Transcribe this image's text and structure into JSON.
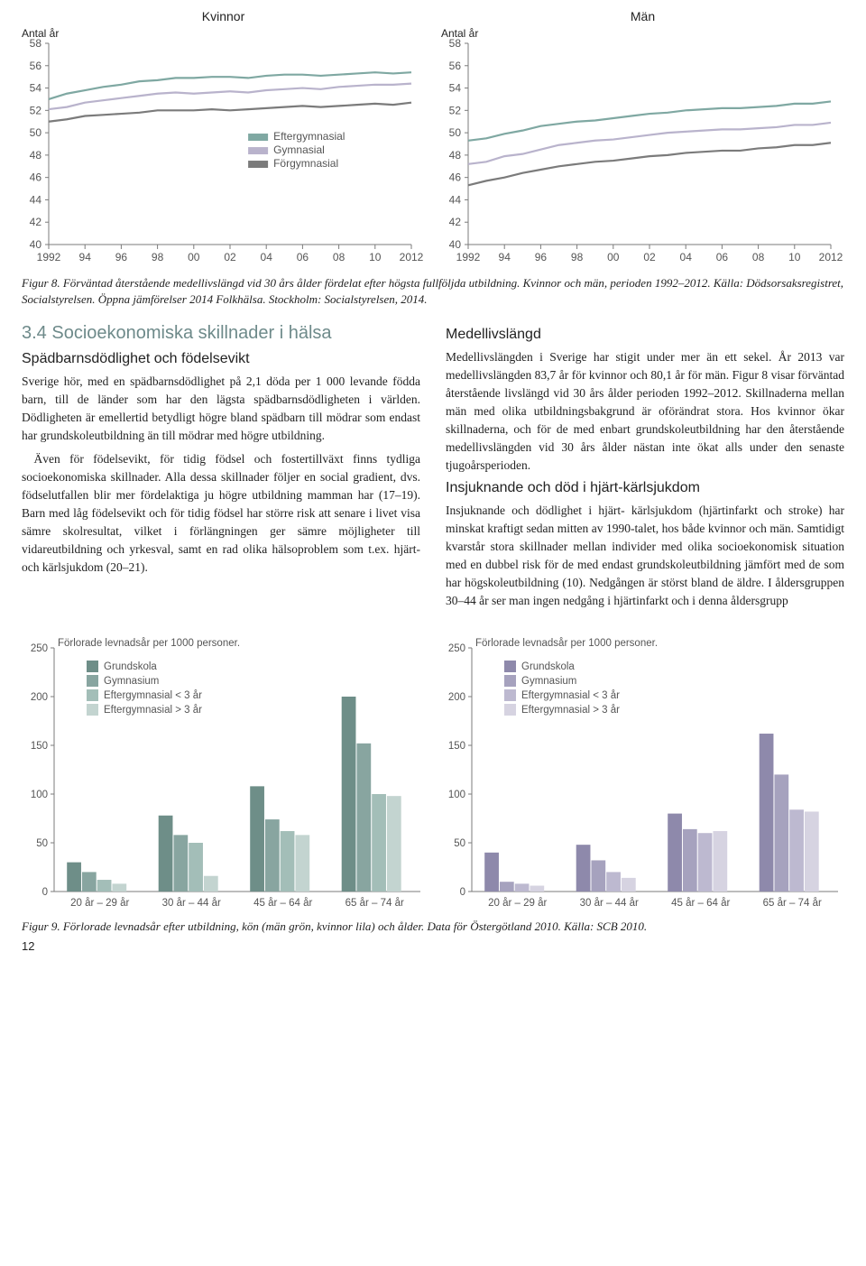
{
  "lineCharts": {
    "ylabel": "Antal år",
    "ylim": [
      40,
      58
    ],
    "ytick_step": 2,
    "xlim": [
      1992,
      2012
    ],
    "xticks": [
      "1992",
      "94",
      "96",
      "98",
      "00",
      "02",
      "04",
      "06",
      "08",
      "10",
      "2012"
    ],
    "legend": [
      "Eftergymnasial",
      "Gymnasial",
      "Förgymnasial"
    ],
    "colors": {
      "efter": "#7fa8a2",
      "gym": "#b9b3cc",
      "for": "#7b7b7b"
    },
    "grid_color": "#c5c2cf",
    "axis_color": "#7b7b7b",
    "left": {
      "title": "Kvinnor",
      "series": {
        "efter": [
          53.0,
          53.5,
          53.8,
          54.1,
          54.3,
          54.6,
          54.7,
          54.9,
          54.9,
          55.0,
          55.0,
          54.9,
          55.1,
          55.2,
          55.2,
          55.1,
          55.2,
          55.3,
          55.4,
          55.3,
          55.4
        ],
        "gym": [
          52.1,
          52.3,
          52.7,
          52.9,
          53.1,
          53.3,
          53.5,
          53.6,
          53.5,
          53.6,
          53.7,
          53.6,
          53.8,
          53.9,
          54.0,
          53.9,
          54.1,
          54.2,
          54.3,
          54.3,
          54.4
        ],
        "for": [
          51.0,
          51.2,
          51.5,
          51.6,
          51.7,
          51.8,
          52.0,
          52.0,
          52.0,
          52.1,
          52.0,
          52.1,
          52.2,
          52.3,
          52.4,
          52.3,
          52.4,
          52.5,
          52.6,
          52.5,
          52.7
        ]
      }
    },
    "right": {
      "title": "Män",
      "series": {
        "efter": [
          49.3,
          49.5,
          49.9,
          50.2,
          50.6,
          50.8,
          51.0,
          51.1,
          51.3,
          51.5,
          51.7,
          51.8,
          52.0,
          52.1,
          52.2,
          52.2,
          52.3,
          52.4,
          52.6,
          52.6,
          52.8
        ],
        "gym": [
          47.2,
          47.4,
          47.9,
          48.1,
          48.5,
          48.9,
          49.1,
          49.3,
          49.4,
          49.6,
          49.8,
          50.0,
          50.1,
          50.2,
          50.3,
          50.3,
          50.4,
          50.5,
          50.7,
          50.7,
          50.9
        ],
        "for": [
          45.3,
          45.7,
          46.0,
          46.4,
          46.7,
          47.0,
          47.2,
          47.4,
          47.5,
          47.7,
          47.9,
          48.0,
          48.2,
          48.3,
          48.4,
          48.4,
          48.6,
          48.7,
          48.9,
          48.9,
          49.1
        ]
      }
    }
  },
  "fig8": "Figur 8. Förväntad återstående medellivslängd vid 30 års ålder fördelat efter högsta fullföljda utbildning. Kvinnor och män, perioden 1992–2012. Källa: Dödsorsaksregistret, Socialstyrelsen. Öppna jämförelser 2014 Folkhälsa. Stockholm: Socialstyrelsen, 2014.",
  "section34": {
    "h2": "3.4 Socioekonomiska skillnader i hälsa",
    "leftH3": "Spädbarnsdödlighet och födelsevikt",
    "leftP1": "Sverige hör, med en spädbarnsdödlighet på 2,1 döda per 1 000 levande födda barn, till de länder som har den lägsta spädbarnsdödligheten i världen. Dödligheten är emellertid betydligt högre bland spädbarn till mödrar som endast har grundskoleutbildning än till mödrar med högre utbildning.",
    "leftP2": "Även för födelsevikt, för tidig födsel och fostertillväxt finns tydliga socioekonomiska skillnader. Alla dessa skillnader följer en social gradient, dvs. födselutfallen blir mer fördelaktiga ju högre utbildning mamman har (17–19). Barn med låg födelsevikt och för tidig födsel har större risk att senare i livet visa sämre skolresultat, vilket i förlängningen ger sämre möjligheter till vidareutbildning och yrkesval, samt en rad olika hälsoproblem som t.ex. hjärt- och kärlsjukdom (20–21).",
    "rightH3a": "Medellivslängd",
    "rightP1": "Medellivslängden i Sverige har stigit under mer än ett sekel. År 2013 var medellivslängden 83,7 år för kvinnor och 80,1 år för män.  Figur 8 visar förväntad återstående livslängd vid 30 års ålder perioden 1992–2012. Skillnaderna mellan män med olika utbildningsbakgrund är oförändrat stora. Hos kvinnor ökar skillnaderna, och för de  med enbart grundskoleutbildning har den återstående medellivslängden vid 30 års ålder nästan inte ökat alls under den senaste tjugoårsperioden.",
    "rightH3b": "Insjuknande och död i hjärt-kärlsjukdom",
    "rightP2": "Insjuknande och dödlighet i hjärt- kärlsjukdom (hjärtinfarkt och stroke) har minskat kraftigt sedan mitten av 1990-talet, hos både kvinnor och män. Samtidigt kvarstår stora skillnader mellan individer med olika socioekonomisk situation med en dubbel risk för de med endast grundskoleutbildning jämfört med de som har högskoleutbildning (10). Nedgången är störst bland de äldre. I åldersgruppen 30–44 år ser man ingen nedgång i hjärtinfarkt och i denna åldersgrupp"
  },
  "barCharts": {
    "ylabel": "Förlorade levnadsår per 1000 personer.",
    "ylim": [
      0,
      250
    ],
    "ytick_step": 50,
    "categories": [
      "20 år – 29 år",
      "30 år – 44 år",
      "45 år – 64 år",
      "65 år – 74 år"
    ],
    "legend": [
      "Grundskola",
      "Gymnasium",
      "Eftergymnasial < 3 år",
      "Eftergymnasial > 3 år"
    ],
    "greenPalette": [
      "#6e8e88",
      "#88a5a0",
      "#a3beb8",
      "#c3d4d0"
    ],
    "purplePalette": [
      "#8e89ab",
      "#a6a2be",
      "#bdb9d0",
      "#d6d3e1"
    ],
    "axis_color": "#7b7b7b",
    "left": {
      "values": [
        [
          30,
          20,
          12,
          8
        ],
        [
          78,
          58,
          50,
          16
        ],
        [
          108,
          74,
          62,
          58
        ],
        [
          200,
          152,
          100,
          98
        ]
      ]
    },
    "right": {
      "values": [
        [
          40,
          10,
          8,
          6
        ],
        [
          48,
          32,
          20,
          14
        ],
        [
          80,
          64,
          60,
          62
        ],
        [
          162,
          120,
          84,
          82
        ]
      ]
    }
  },
  "fig9": "Figur 9. Förlorade levnadsår efter utbildning, kön (män grön, kvinnor lila) och ålder. Data för Östergötland 2010.  Källa: SCB 2010.",
  "pageNum": "12"
}
